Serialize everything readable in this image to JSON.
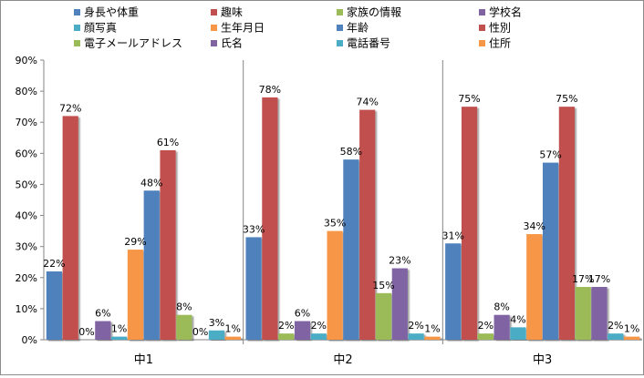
{
  "chart_data": {
    "type": "bar",
    "title": "",
    "xlabel": "",
    "ylabel": "",
    "ylim": [
      0,
      90
    ],
    "y_tick_step": 10,
    "y_tick_suffix": "%",
    "grid": false,
    "legend_position": "top",
    "categories": [
      "中1",
      "中2",
      "中3"
    ],
    "series": [
      {
        "name": "身長や体重",
        "color": "#4f81bd",
        "values": [
          22,
          33,
          31
        ]
      },
      {
        "name": "趣味",
        "color": "#c0504d",
        "values": [
          72,
          78,
          75
        ]
      },
      {
        "name": "家族の情報",
        "color": "#9bbb59",
        "values": [
          0,
          2,
          2
        ]
      },
      {
        "name": "学校名",
        "color": "#8064a2",
        "values": [
          6,
          6,
          8
        ]
      },
      {
        "name": "顔写真",
        "color": "#4bacc6",
        "values": [
          1,
          2,
          4
        ]
      },
      {
        "name": "生年月日",
        "color": "#f79646",
        "values": [
          29,
          35,
          34
        ]
      },
      {
        "name": "年齢",
        "color": "#4f81bd",
        "values": [
          48,
          58,
          57
        ]
      },
      {
        "name": "性別",
        "color": "#c0504d",
        "values": [
          61,
          74,
          75
        ]
      },
      {
        "name": "電子メールアドレス",
        "color": "#9bbb59",
        "values": [
          8,
          15,
          17
        ]
      },
      {
        "name": "氏名",
        "color": "#8064a2",
        "values": [
          0,
          23,
          17
        ]
      },
      {
        "name": "電話番号",
        "color": "#4bacc6",
        "values": [
          3,
          2,
          2
        ]
      },
      {
        "name": "住所",
        "color": "#f79646",
        "values": [
          1,
          1,
          1
        ]
      }
    ]
  }
}
